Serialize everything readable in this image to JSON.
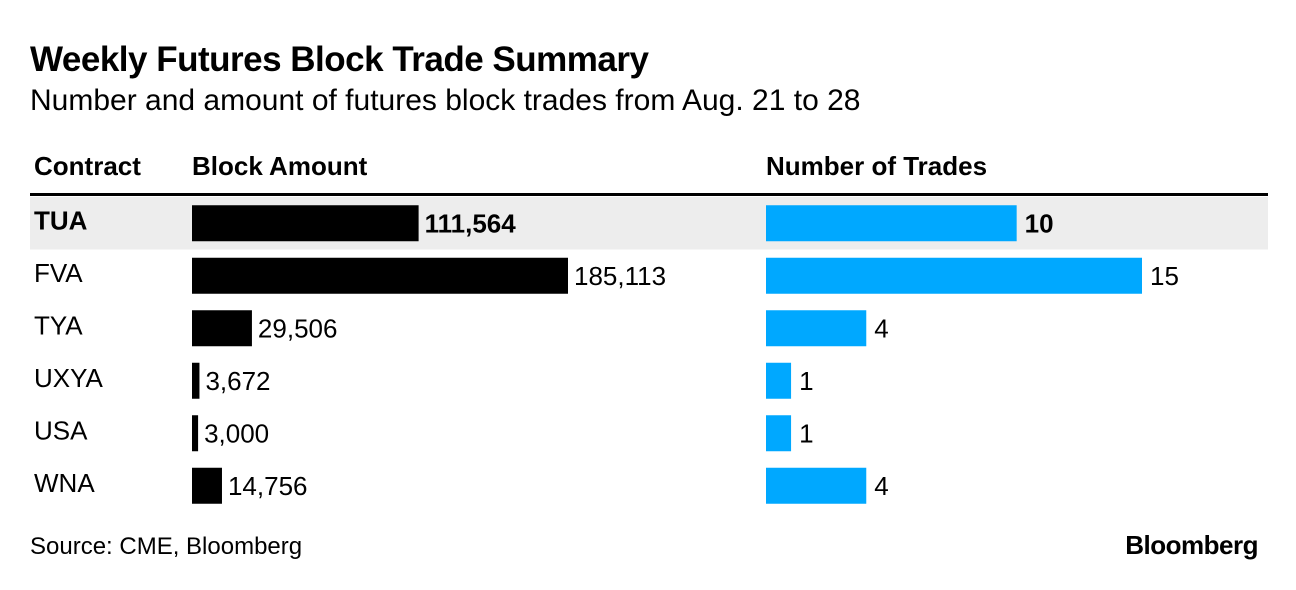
{
  "title": "Weekly Futures Block Trade Summary",
  "subtitle": "Number and amount of futures block trades from Aug. 21 to 28",
  "source": "Source: CME, Bloomberg",
  "brand": "Bloomberg",
  "colors": {
    "amount_bar": "#000000",
    "trades_bar": "#00A8FF",
    "highlight_row": "#EDEDED",
    "rule": "#000000"
  },
  "chart_data": {
    "type": "table",
    "columns": [
      "Contract",
      "Block Amount",
      "Number of Trades"
    ],
    "highlighted_row": "TUA",
    "rows": [
      {
        "contract": "TUA",
        "amount": 111564,
        "amount_label": "111,564",
        "trades": 10,
        "trades_label": "10"
      },
      {
        "contract": "FVA",
        "amount": 185113,
        "amount_label": "185,113",
        "trades": 15,
        "trades_label": "15"
      },
      {
        "contract": "TYA",
        "amount": 29506,
        "amount_label": "29,506",
        "trades": 4,
        "trades_label": "4"
      },
      {
        "contract": "UXYA",
        "amount": 3672,
        "amount_label": "3,672",
        "trades": 1,
        "trades_label": "1"
      },
      {
        "contract": "USA",
        "amount": 3000,
        "amount_label": "3,000",
        "trades": 1,
        "trades_label": "1"
      },
      {
        "contract": "WNA",
        "amount": 14756,
        "amount_label": "14,756",
        "trades": 4,
        "trades_label": "4"
      }
    ]
  }
}
